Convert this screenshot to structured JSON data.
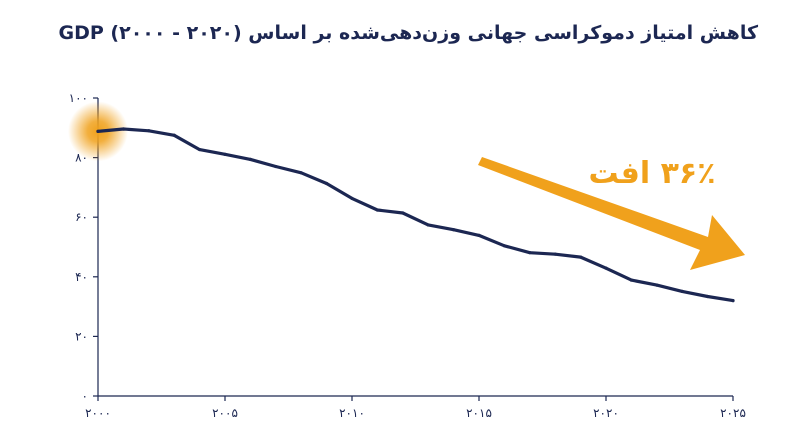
{
  "chart_data": {
    "type": "line",
    "title": "کاهش امتیاز دموکراسی جهانی وزن‌دهی‌شده بر اساس GDP (۲۰۰۰ - ۲۰۲۰)",
    "xlabel": "",
    "ylabel": "",
    "xlim": [
      2000,
      2025
    ],
    "ylim": [
      0,
      100
    ],
    "x_ticks": [
      2000,
      2005,
      2010,
      2015,
      2020,
      2025
    ],
    "x_tick_labels": [
      "۲۰۰۰",
      "۲۰۰۵",
      "۲۰۱۰",
      "۲۰۱۵",
      "۲۰۲۰",
      "۲۰۲۵"
    ],
    "y_ticks": [
      0,
      20,
      40,
      60,
      80,
      100
    ],
    "y_tick_labels": [
      "۰",
      "۲۰",
      "۴۰",
      "۶۰",
      "۸۰",
      "۱۰۰"
    ],
    "grid": false,
    "series": [
      {
        "color": "#1c2752",
        "x": [
          2000,
          2001,
          2002,
          2003,
          2004,
          2005,
          2006,
          2007,
          2008,
          2009,
          2010,
          2011,
          2012,
          2013,
          2014,
          2015,
          2016,
          2017,
          2018,
          2019,
          2020,
          2021,
          2022,
          2023,
          2024,
          2025
        ],
        "y": [
          88.8,
          89.6,
          89.0,
          87.5,
          82.7,
          81.1,
          79.4,
          77.0,
          74.9,
          71.3,
          66.3,
          62.4,
          61.4,
          57.4,
          55.8,
          53.9,
          50.4,
          48.1,
          47.6,
          46.6,
          42.9,
          38.9,
          37.2,
          35.1,
          33.4,
          32.0
        ]
      }
    ],
    "highlight": {
      "x": 2000,
      "y": 88.8,
      "color": "#f0a11c"
    },
    "annotation": {
      "text": "۳۶٪ افت",
      "color": "#f0a11c"
    }
  }
}
